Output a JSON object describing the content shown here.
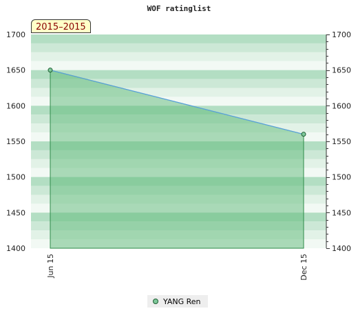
{
  "chart_data": {
    "type": "area",
    "title": "WOF ratinglist",
    "period_label": "2015–2015",
    "categories": [
      "Jun 15",
      "Dec 15"
    ],
    "series": [
      {
        "name": "YANG Ren",
        "values": [
          1650,
          1560
        ],
        "color": "#2e8b4a"
      }
    ],
    "ylim": [
      1400,
      1700
    ],
    "yticks": [
      1400,
      1450,
      1500,
      1550,
      1600,
      1650,
      1700
    ],
    "grid": true,
    "legend_position": "bottom-center",
    "colors": {
      "area_fill": "#5fb97a",
      "line": "#5aa0e0",
      "marker_fill": "#7ec89a",
      "marker_stroke": "#1f5e33",
      "band_dark": "#b3dec3",
      "band_mid": "#cce8d6",
      "band_light": "#e2f2e7",
      "band_lightest": "#f2f9f4"
    }
  }
}
